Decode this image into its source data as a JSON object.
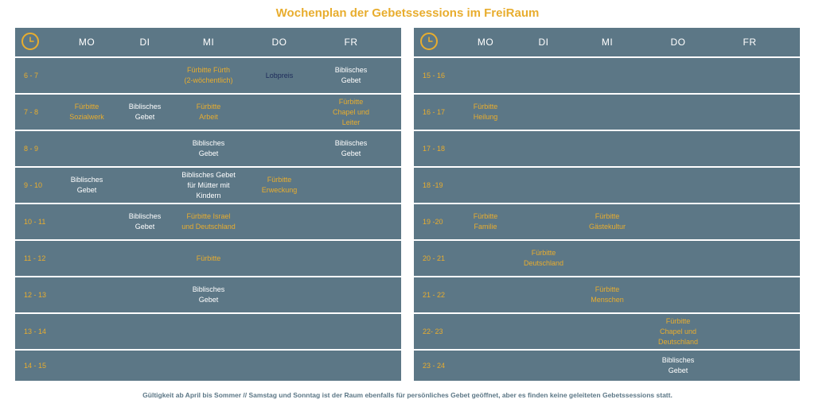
{
  "title": "Wochenplan der Gebetssessions im FreiRaum",
  "days": [
    "MO",
    "DI",
    "MI",
    "DO",
    "FR"
  ],
  "colors": {
    "panel": "#5c7786",
    "accent": "#e8ad2e",
    "navy": "#1d2b5a"
  },
  "icon": "clock-icon",
  "left": {
    "times": [
      "6 - 7",
      "7 - 8",
      "8 - 9",
      "9 - 10",
      "10 - 11",
      "11 - 12",
      "12 - 13",
      "13 - 14",
      "14 - 15"
    ],
    "entries": [
      {
        "row": 0,
        "day": "MI",
        "text": "Fürbitte Fürth\n(2-wöchentlich)",
        "style": "yellow"
      },
      {
        "row": 0,
        "day": "DO",
        "text": "Lobpreis",
        "style": "navy"
      },
      {
        "row": 0,
        "day": "FR",
        "text": "Biblisches\nGebet",
        "style": "white"
      },
      {
        "row": 1,
        "day": "MO",
        "text": "Fürbitte\nSozialwerk",
        "style": "yellow"
      },
      {
        "row": 1,
        "day": "DI",
        "text": "Biblisches\nGebet",
        "style": "white"
      },
      {
        "row": 1,
        "day": "MI",
        "text": "Fürbitte\nArbeit",
        "style": "yellow"
      },
      {
        "row": 1,
        "day": "FR",
        "text": "Fürbitte\nChapel und Leiter",
        "style": "yellow"
      },
      {
        "row": 2,
        "day": "MI",
        "text": "Biblisches\nGebet",
        "style": "white"
      },
      {
        "row": 2,
        "day": "FR",
        "text": "Biblisches\nGebet",
        "style": "white"
      },
      {
        "row": 3,
        "day": "MO",
        "text": "Biblisches\nGebet",
        "style": "white"
      },
      {
        "row": 3,
        "day": "MI",
        "text": "Biblisches Gebet\nfür Mütter mit\nKindern",
        "style": "white"
      },
      {
        "row": 3,
        "day": "DO",
        "text": "Fürbitte\nErweckung",
        "style": "yellow"
      },
      {
        "row": 4,
        "day": "DI",
        "text": "Biblisches\nGebet",
        "style": "white"
      },
      {
        "row": 4,
        "day": "MI",
        "text": "Fürbitte Israel\nund Deutschland",
        "style": "yellow"
      },
      {
        "row": 5,
        "day": "MI",
        "text": "Fürbitte",
        "style": "yellow"
      },
      {
        "row": 6,
        "day": "MI",
        "text": "Biblisches\nGebet",
        "style": "white"
      }
    ]
  },
  "right": {
    "times": [
      "15 - 16",
      "16 - 17",
      "17 - 18",
      "18 -19",
      "19 -20",
      "20 - 21",
      "21 - 22",
      "22- 23",
      "23 - 24"
    ],
    "entries": [
      {
        "row": 1,
        "day": "MO",
        "text": "Fürbitte\nHeilung",
        "style": "yellow"
      },
      {
        "row": 4,
        "day": "MO",
        "text": "Fürbitte\nFamilie",
        "style": "yellow"
      },
      {
        "row": 4,
        "day": "MI",
        "text": "Fürbitte\nGästekultur",
        "style": "yellow"
      },
      {
        "row": 5,
        "day": "DI",
        "text": "Fürbitte\nDeutschland",
        "style": "yellow"
      },
      {
        "row": 6,
        "day": "MI",
        "text": "Fürbitte\nMenschen",
        "style": "yellow"
      },
      {
        "row": 7,
        "day": "DO",
        "text": "Fürbitte\nChapel und\nDeutschland",
        "style": "yellow"
      },
      {
        "row": 8,
        "day": "DO",
        "text": "Biblisches\nGebet",
        "style": "white"
      }
    ]
  },
  "footnote": "Gültigkeit ab April bis Sommer // Samstag und Sonntag ist der Raum ebenfalls für persönliches Gebet geöffnet, aber es finden keine geleiteten Gebetssessions statt."
}
